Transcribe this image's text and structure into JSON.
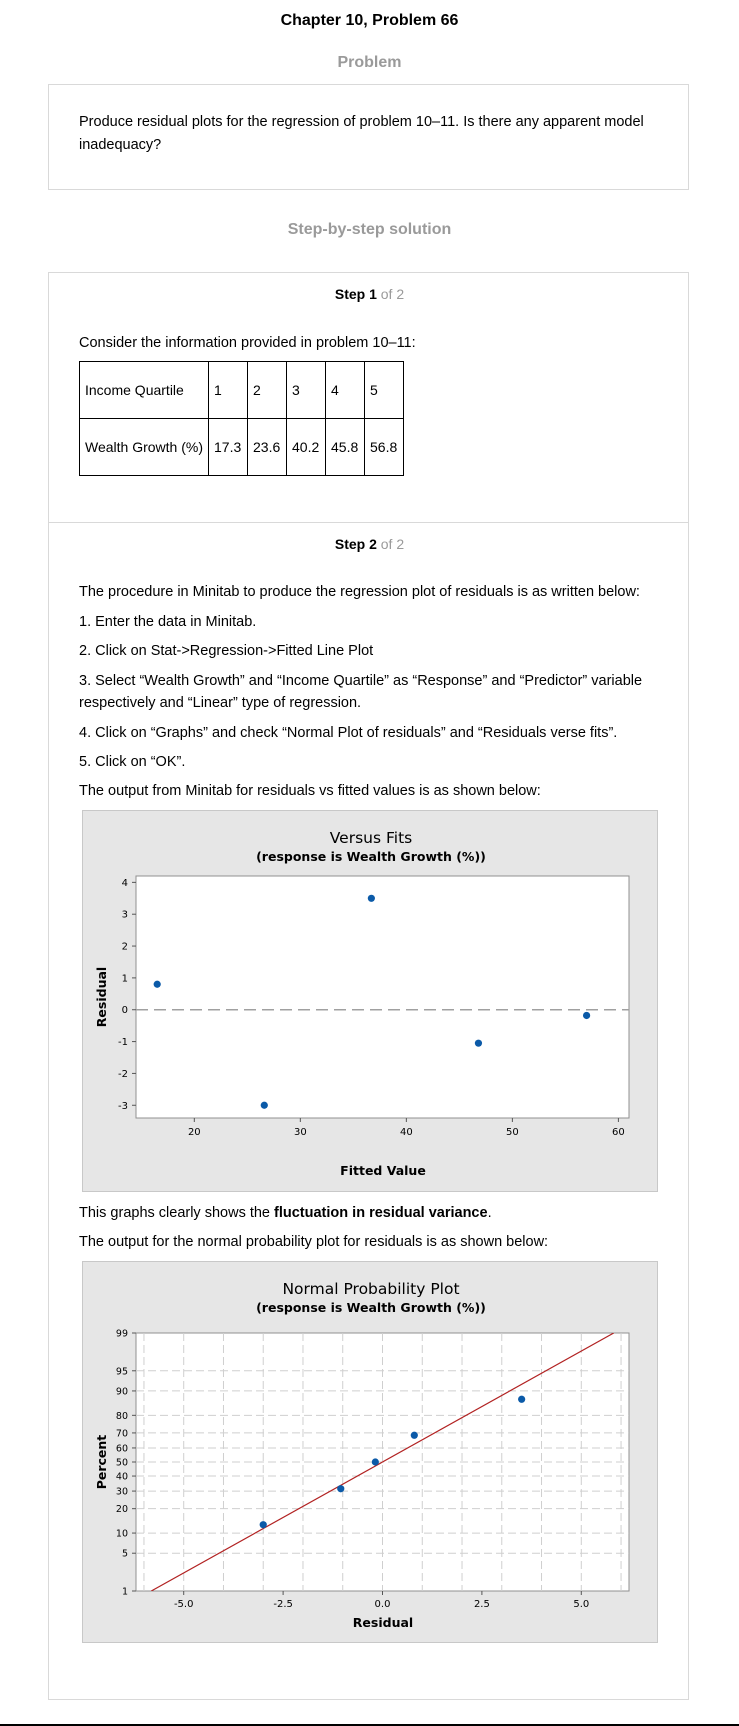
{
  "page_title": "Chapter 10, Problem 66",
  "problem_heading": "Problem",
  "problem_text_1": "Produce residual plots for the regression of problem 10–11. Is there any apparent model",
  "problem_text_2": "inadequacy?",
  "solution_heading": "Step-by-step solution",
  "step1": {
    "label": "Step 1",
    "of": " of 2",
    "intro": "Consider the information provided in problem 10–11:"
  },
  "table": {
    "row1_header": "Income Quartile",
    "row1": [
      "1",
      "2",
      "3",
      "4",
      "5"
    ],
    "row2_header": "Wealth Growth (%)",
    "row2": [
      "17.3",
      "23.6",
      "40.2",
      "45.8",
      "56.8"
    ]
  },
  "step2": {
    "label": "Step 2",
    "of": " of 2",
    "intro": "The procedure in Minitab to produce the regression plot of residuals is as written below:",
    "item1": "1. Enter the data in Minitab.",
    "item2": "2. Click on Stat->Regression->Fitted Line Plot",
    "item3a": "3. Select “Wealth Growth” and “Income Quartile” as “Response” and “Predictor” variable",
    "item3b": "respectively and “Linear” type of regression.",
    "item4": "4. Click on “Graphs” and check “Normal Plot of residuals” and “Residuals verse fits”.",
    "item5": "5. Click on “OK”.",
    "output1": "The output from Minitab for residuals vs fitted values is as shown below:",
    "conclusion_pre": "This graphs clearly shows the ",
    "conclusion_bold": "fluctuation in residual variance",
    "conclusion_post": ".",
    "output2": "The output for the normal probability plot for residuals is as shown below:"
  },
  "chart_data": [
    {
      "type": "scatter",
      "title": "Versus Fits",
      "subtitle": "(response is Wealth Growth (%))",
      "xlabel": "Fitted Value",
      "ylabel": "Residual",
      "xlim": [
        14.5,
        61
      ],
      "ylim": [
        -3.4,
        4.2
      ],
      "x_ticks": [
        20,
        30,
        40,
        50,
        60
      ],
      "y_ticks": [
        -3,
        -2,
        -1,
        0,
        1,
        2,
        3,
        4
      ],
      "reference_line": 0,
      "points": [
        {
          "x": 16.5,
          "y": 0.8
        },
        {
          "x": 26.6,
          "y": -3.0
        },
        {
          "x": 36.7,
          "y": 3.5
        },
        {
          "x": 46.8,
          "y": -1.05
        },
        {
          "x": 57.0,
          "y": -0.18
        }
      ],
      "colors": {
        "point": "#0b5aa8",
        "ref_line": "#a0a0a0",
        "panel": "#e6e6e6"
      }
    },
    {
      "type": "scatter",
      "title": "Normal Probability Plot",
      "subtitle": "(response is Wealth Growth (%))",
      "xlabel": "Residual",
      "ylabel": "Percent",
      "xlim": [
        -6.2,
        6.2
      ],
      "y_ticks": [
        1,
        5,
        10,
        20,
        30,
        40,
        50,
        60,
        70,
        80,
        90,
        95,
        99
      ],
      "x_ticks": [
        "-5.0",
        "-2.5",
        "0.0",
        "2.5",
        "5.0"
      ],
      "x_tick_values": [
        -5,
        -2.5,
        0,
        2.5,
        5
      ],
      "grid": true,
      "fit_line": {
        "mean": 0,
        "sd": 2.5
      },
      "points": [
        {
          "x": -3.0,
          "y": 12.9
        },
        {
          "x": -1.05,
          "y": 31.5
        },
        {
          "x": -0.18,
          "y": 50
        },
        {
          "x": 0.8,
          "y": 68.5
        },
        {
          "x": 3.5,
          "y": 87.1
        }
      ],
      "colors": {
        "point": "#0b5aa8",
        "fit_line": "#b22222",
        "panel": "#e6e6e6",
        "grid": "#cfcfcf"
      }
    }
  ]
}
